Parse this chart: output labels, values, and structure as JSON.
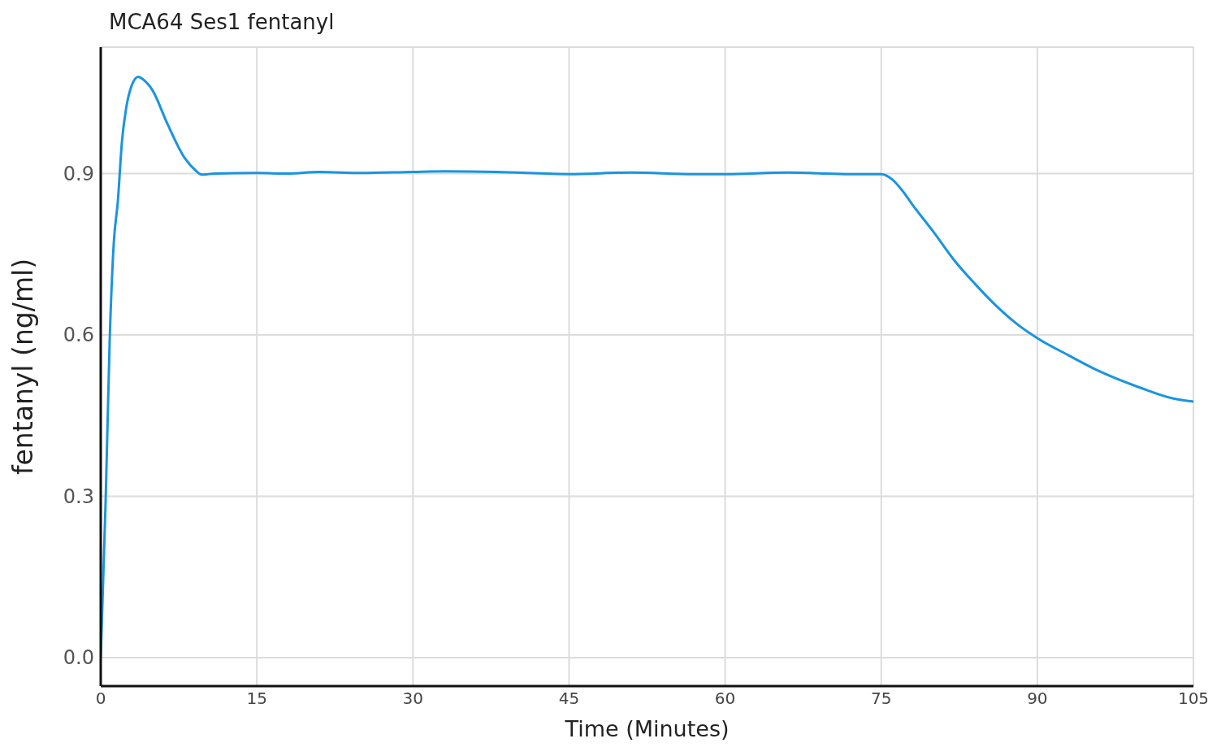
{
  "chart_data": {
    "type": "line",
    "title": "MCA64 Ses1 fentanyl",
    "xlabel": "Time (Minutes)",
    "ylabel": "fentanyl (ng/ml)",
    "x": [
      0,
      0.47,
      0.86,
      1.25,
      1.65,
      2.04,
      2.43,
      2.98,
      3.6,
      4.0,
      5.0,
      6.35,
      8.1,
      9.1,
      9.7,
      11,
      15,
      18,
      21,
      25,
      30,
      33,
      38,
      45,
      51,
      57,
      60,
      66,
      72,
      75,
      76,
      77,
      78,
      80,
      82,
      84,
      86,
      88,
      90,
      93,
      96,
      100,
      103,
      105
    ],
    "series": [
      {
        "color": "#1a94e0",
        "values": [
          0,
          0.29,
          0.59,
          0.77,
          0.85,
          0.96,
          1.02,
          1.064,
          1.08,
          1.076,
          1.054,
          0.995,
          0.928,
          0.906,
          0.898,
          0.9,
          0.901,
          0.9,
          0.903,
          0.901,
          0.903,
          0.904,
          0.903,
          0.899,
          0.902,
          0.899,
          0.899,
          0.902,
          0.899,
          0.899,
          0.89,
          0.869,
          0.842,
          0.792,
          0.739,
          0.695,
          0.655,
          0.621,
          0.594,
          0.562,
          0.532,
          0.501,
          0.482,
          0.476
        ]
      }
    ],
    "xlim": [
      0,
      105
    ],
    "xticks": [
      0,
      15,
      30,
      45,
      60,
      75,
      90,
      105
    ],
    "ylim": [
      -0.053,
      1.135
    ],
    "yticks": [
      {
        "value": 0,
        "label": "0.0"
      },
      {
        "value": 0.3,
        "label": "0.3"
      },
      {
        "value": 0.6,
        "label": "0.6"
      },
      {
        "value": 0.9,
        "label": "0.9"
      }
    ],
    "grid": true,
    "marker": "none",
    "line_style": "solid"
  }
}
